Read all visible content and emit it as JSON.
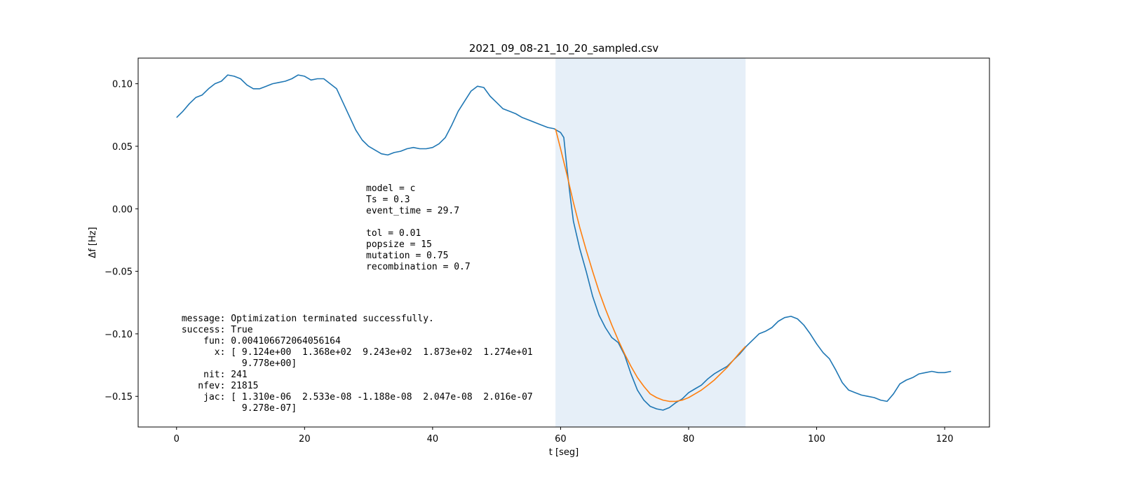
{
  "chart_data": {
    "type": "line",
    "title": "2021_09_08-21_10_20_sampled.csv",
    "xlabel": "t [seg]",
    "ylabel": "Δf [Hz]",
    "xlim": [
      -6.0,
      127.0
    ],
    "ylim": [
      -0.1745,
      0.1205
    ],
    "x_ticks": [
      0,
      20,
      40,
      60,
      80,
      100,
      120
    ],
    "x_tick_labels": [
      "0",
      "20",
      "40",
      "60",
      "80",
      "100",
      "120"
    ],
    "y_ticks": [
      0.1,
      0.05,
      0.0,
      -0.05,
      -0.1,
      -0.15
    ],
    "y_tick_labels": [
      "0.10",
      "0.05",
      "0.00",
      "−0.05",
      "−0.10",
      "−0.15"
    ],
    "grid": false,
    "highlight_span": {
      "x0": 59.2,
      "x1": 88.9,
      "color": "#e6eff8"
    },
    "series": [
      {
        "color": "#1f77b4",
        "x": [
          0,
          1,
          2,
          3,
          4,
          5,
          6,
          7,
          8,
          9,
          10,
          11,
          12,
          13,
          14,
          15,
          16,
          17,
          18,
          19,
          20,
          21,
          22,
          23,
          24,
          25,
          26,
          27,
          28,
          29,
          30,
          31,
          32,
          33,
          34,
          35,
          36,
          37,
          38,
          39,
          40,
          41,
          42,
          43,
          44,
          45,
          46,
          47,
          48,
          49,
          50,
          51,
          52,
          53,
          54,
          55,
          56,
          57,
          58,
          59,
          59.3,
          60,
          60.5,
          61,
          61.5,
          62,
          63,
          64,
          65,
          66,
          67,
          68,
          69,
          70,
          71,
          72,
          73,
          74,
          75,
          76,
          77,
          78,
          79,
          80,
          81,
          82,
          83,
          84,
          85,
          86,
          87,
          88,
          89,
          90,
          91,
          92,
          93,
          94,
          95,
          96,
          97,
          98,
          99,
          100,
          101,
          102,
          103,
          104,
          105,
          106,
          107,
          108,
          109,
          110,
          111,
          112,
          113,
          114,
          115,
          116,
          117,
          118,
          119,
          120,
          121
        ],
        "y": [
          0.073,
          0.078,
          0.084,
          0.089,
          0.091,
          0.096,
          0.1,
          0.102,
          0.107,
          0.106,
          0.104,
          0.099,
          0.096,
          0.096,
          0.098,
          0.1,
          0.101,
          0.102,
          0.104,
          0.107,
          0.106,
          0.103,
          0.104,
          0.104,
          0.1,
          0.096,
          0.085,
          0.074,
          0.063,
          0.055,
          0.05,
          0.047,
          0.044,
          0.043,
          0.045,
          0.046,
          0.048,
          0.049,
          0.048,
          0.048,
          0.049,
          0.052,
          0.057,
          0.067,
          0.078,
          0.086,
          0.094,
          0.098,
          0.097,
          0.09,
          0.085,
          0.08,
          0.078,
          0.076,
          0.073,
          0.071,
          0.069,
          0.067,
          0.065,
          0.064,
          0.063,
          0.061,
          0.057,
          0.032,
          0.01,
          -0.01,
          -0.032,
          -0.05,
          -0.07,
          -0.085,
          -0.095,
          -0.103,
          -0.107,
          -0.117,
          -0.132,
          -0.145,
          -0.153,
          -0.158,
          -0.16,
          -0.161,
          -0.159,
          -0.155,
          -0.152,
          -0.147,
          -0.144,
          -0.141,
          -0.136,
          -0.132,
          -0.129,
          -0.126,
          -0.121,
          -0.116,
          -0.11,
          -0.105,
          -0.1,
          -0.098,
          -0.095,
          -0.09,
          -0.087,
          -0.086,
          -0.088,
          -0.093,
          -0.1,
          -0.108,
          -0.115,
          -0.12,
          -0.129,
          -0.139,
          -0.145,
          -0.147,
          -0.149,
          -0.15,
          -0.151,
          -0.153,
          -0.154,
          -0.148,
          -0.14,
          -0.137,
          -0.135,
          -0.132,
          -0.131,
          -0.13,
          -0.131,
          -0.131,
          -0.13
        ]
      },
      {
        "color": "#ff7f0e",
        "x": [
          59.2,
          60,
          61,
          62,
          63,
          64,
          65,
          66,
          67,
          68,
          69,
          70,
          71,
          72,
          73,
          74,
          75,
          76,
          77,
          78,
          79,
          80,
          81,
          82,
          83,
          84,
          85,
          86,
          87,
          88,
          88.9
        ],
        "y": [
          0.064,
          0.048,
          0.027,
          0.005,
          -0.015,
          -0.033,
          -0.05,
          -0.066,
          -0.08,
          -0.093,
          -0.105,
          -0.116,
          -0.126,
          -0.135,
          -0.142,
          -0.148,
          -0.151,
          -0.153,
          -0.154,
          -0.154,
          -0.153,
          -0.151,
          -0.148,
          -0.145,
          -0.141,
          -0.137,
          -0.132,
          -0.127,
          -0.121,
          -0.115,
          -0.11
        ]
      }
    ],
    "annotations": {
      "params_block": [
        "model = c",
        "Ts = 0.3",
        "event_time = 29.7",
        "",
        "tol = 0.01",
        "popsize = 15",
        "mutation = 0.75",
        "recombination = 0.7"
      ],
      "result_block": [
        " message: Optimization terminated successfully.",
        " success: True",
        "     fun: 0.004106672064056164",
        "       x: [ 9.124e+00  1.368e+02  9.243e+02  1.873e+02  1.274e+01",
        "            9.778e+00]",
        "     nit: 241",
        "    nfev: 21815",
        "     jac: [ 1.310e-06  2.533e-08 -1.188e-08  2.047e-08  2.016e-07",
        "            9.278e-07]"
      ]
    }
  }
}
